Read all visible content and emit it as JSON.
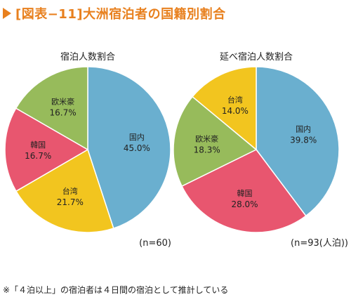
{
  "header": {
    "title": "[図表−11]大洲宿泊者の国籍別割合"
  },
  "footnote": "※「４泊以上」の宿泊者は４日間の宿泊として推計している",
  "colors": {
    "title": "#e8801e",
    "国内": "#6aafcf",
    "台湾": "#f2c51f",
    "韓国": "#e8566f",
    "欧米豪": "#97bb5b"
  },
  "chart_data": [
    {
      "type": "pie",
      "title": "宿泊人数割合",
      "note": "(n=60)",
      "slices": [
        {
          "label": "国内",
          "value": 45.0,
          "value_label": "45.0%"
        },
        {
          "label": "台湾",
          "value": 21.7,
          "value_label": "21.7%"
        },
        {
          "label": "韓国",
          "value": 16.7,
          "value_label": "16.7%"
        },
        {
          "label": "欧米豪",
          "value": 16.7,
          "value_label": "16.7%"
        }
      ]
    },
    {
      "type": "pie",
      "title": "延べ宿泊人数割合",
      "note": "(n=93(人泊))",
      "slices": [
        {
          "label": "国内",
          "value": 39.8,
          "value_label": "39.8%"
        },
        {
          "label": "韓国",
          "value": 28.0,
          "value_label": "28.0%"
        },
        {
          "label": "欧米豪",
          "value": 18.3,
          "value_label": "18.3%"
        },
        {
          "label": "台湾",
          "value": 14.0,
          "value_label": "14.0%"
        }
      ]
    }
  ]
}
